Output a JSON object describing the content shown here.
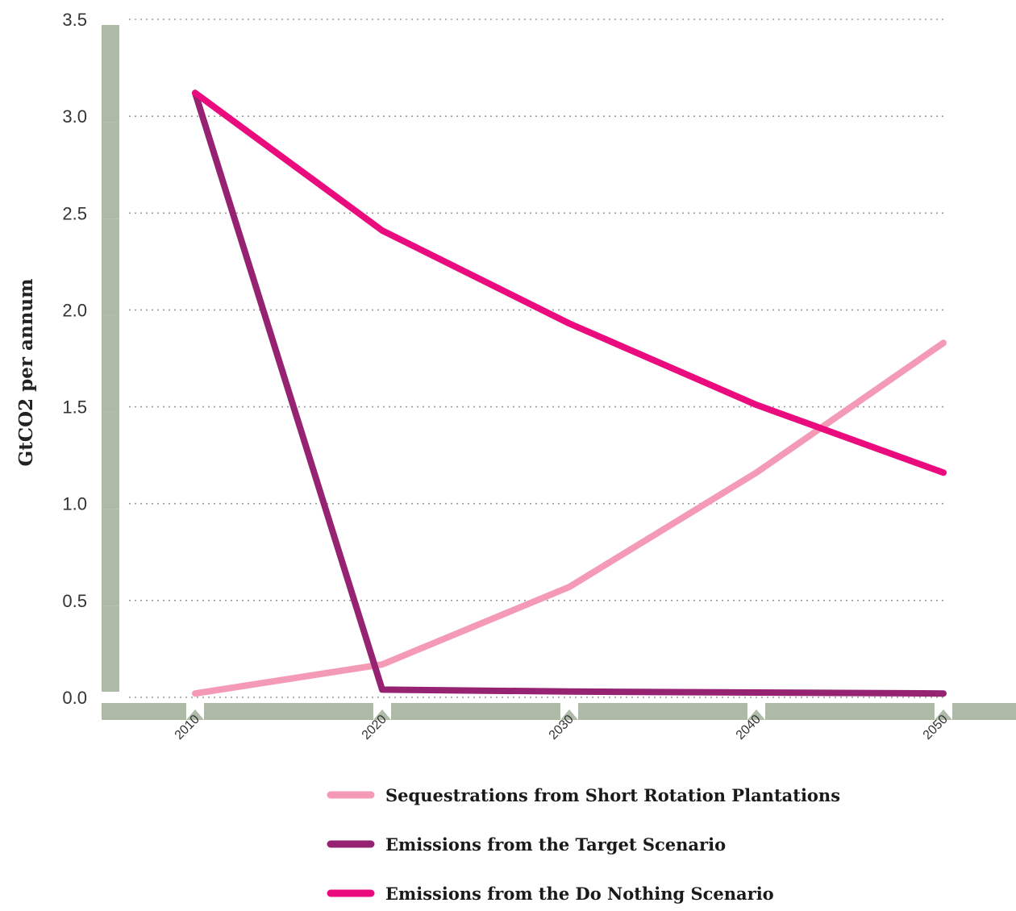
{
  "chart_data": {
    "type": "line",
    "title": "",
    "xlabel": "",
    "ylabel": "GtCO2 per annum",
    "x": [
      "2010",
      "2020",
      "2030",
      "2040",
      "2050"
    ],
    "ylim": [
      0,
      3.5
    ],
    "yticks": [
      "0.0",
      "0.5",
      "1.0",
      "1.5",
      "2.0",
      "2.5",
      "3.0",
      "3.5"
    ],
    "grid": true,
    "legend_position": "bottom",
    "series": [
      {
        "name": "Sequestrations from Short Rotation Plantations",
        "color": "#f49ab7",
        "values": [
          0.02,
          0.17,
          0.57,
          1.16,
          1.83
        ]
      },
      {
        "name": "Emissions from the Target Scenario",
        "color": "#952372",
        "values": [
          3.12,
          0.04,
          0.03,
          0.025,
          0.02
        ]
      },
      {
        "name": "Emissions from the Do Nothing Scenario",
        "color": "#ea0c7e",
        "values": [
          3.12,
          2.41,
          1.93,
          1.51,
          1.16
        ]
      }
    ]
  }
}
